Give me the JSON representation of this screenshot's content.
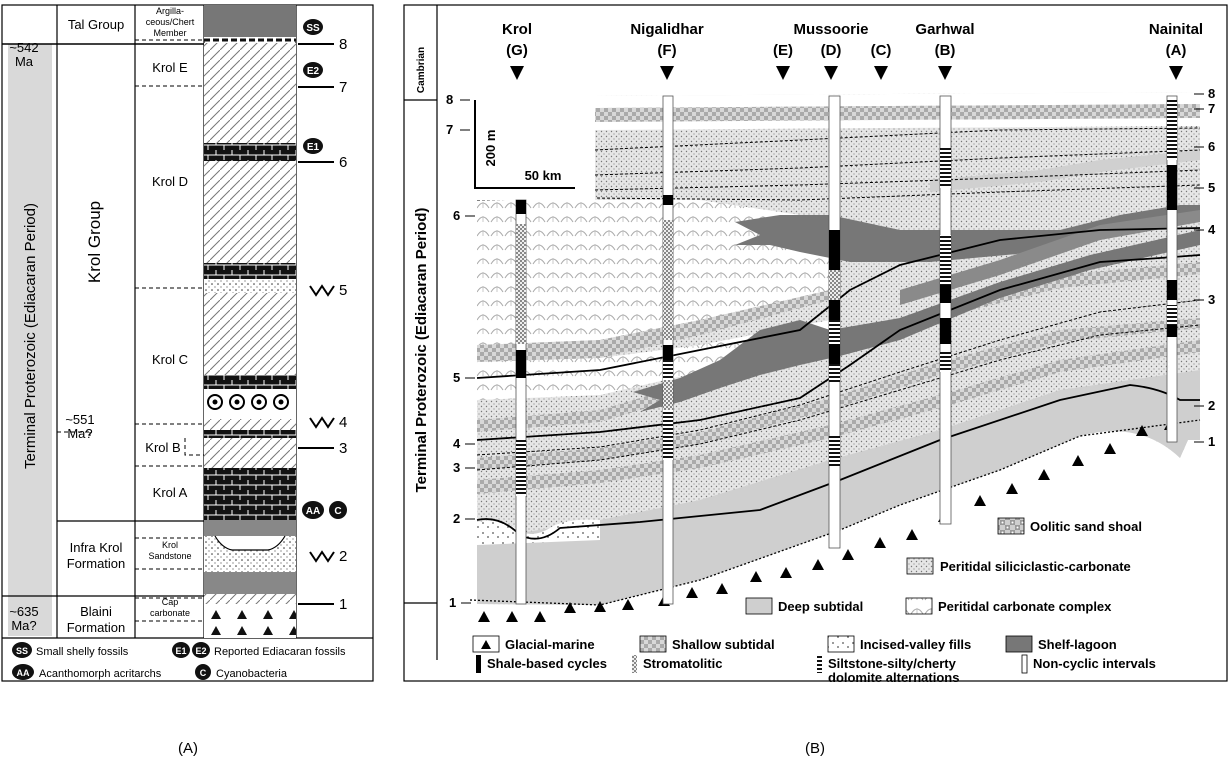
{
  "panel_a": {
    "caption": "(A)",
    "period_label": "Terminal Proterozoic (Ediacaran Period)",
    "ages": [
      {
        "l1": "~542",
        "l2": "Ma"
      },
      {
        "l1": "~551",
        "l2": "Ma?"
      },
      {
        "l1": "~635",
        "l2": "Ma?"
      }
    ],
    "groups": {
      "tal": "Tal Group",
      "krol": "Krol Group",
      "infra_l1": "Infra Krol",
      "infra_l2": "Formation",
      "blaini_l1": "Blaini",
      "blaini_l2": "Formation"
    },
    "members": {
      "argilla_l1": "Argilla-",
      "argilla_l2": "ceous/Chert",
      "argilla_l3": "Member",
      "krol_e": "Krol E",
      "krol_d": "Krol D",
      "krol_c": "Krol C",
      "krol_b": "Krol B",
      "krol_a": "Krol A",
      "krol_ss_l1": "Krol",
      "krol_ss_l2": "Sandstone",
      "cap_l1": "Cap",
      "cap_l2": "carbonate"
    },
    "markers": [
      "1",
      "2",
      "3",
      "4",
      "5",
      "6",
      "7",
      "8"
    ],
    "fossil_badges": {
      "ss": "SS",
      "e1": "E1",
      "e2": "E2",
      "aa": "AA",
      "c": "C"
    },
    "legend": {
      "ss": "Small shelly fossils",
      "e": "Reported Ediacaran fossils",
      "aa": "Acanthomorph acritarchs",
      "c": "Cyanobacteria"
    }
  },
  "panel_b": {
    "caption": "(B)",
    "cambrian": "Cambrian",
    "period_label": "Terminal Proterozoic (Ediacaran Period)",
    "sections": [
      {
        "name": "Krol",
        "code": "(G)"
      },
      {
        "name": "Nigalidhar",
        "code": "(F)"
      },
      {
        "name": "",
        "code": "(E)"
      },
      {
        "name": "Mussoorie",
        "code": "(D)"
      },
      {
        "name": "",
        "code": "(C)"
      },
      {
        "name": "Garhwal",
        "code": "(B)"
      },
      {
        "name": "Nainital",
        "code": "(A)"
      }
    ],
    "scale_vertical": "200 m",
    "scale_horizontal": "50 km",
    "left_markers": [
      "8",
      "7",
      "6",
      "5",
      "4",
      "3",
      "2",
      "1"
    ],
    "right_markers": [
      "8",
      "7",
      "6",
      "5",
      "4",
      "3",
      "2",
      "1"
    ],
    "facies_legend": {
      "oolitic": "Oolitic sand shoal",
      "peritidal_sc": "Peritidal siliciclastic-carbonate",
      "deep": "Deep subtidal",
      "peritidal_cc": "Peritidal carbonate complex",
      "glacial": "Glacial-marine",
      "shallow": "Shallow subtidal",
      "incised": "Incised-valley fills",
      "shelf": "Shelf-lagoon"
    },
    "cycle_legend": {
      "shale": "Shale-based cycles",
      "strom": "Stromatolitic",
      "silt_l1": "Siltstone-silty/cherty",
      "silt_l2": "dolomite alternations",
      "noncyc": "Non-cyclic intervals"
    }
  }
}
